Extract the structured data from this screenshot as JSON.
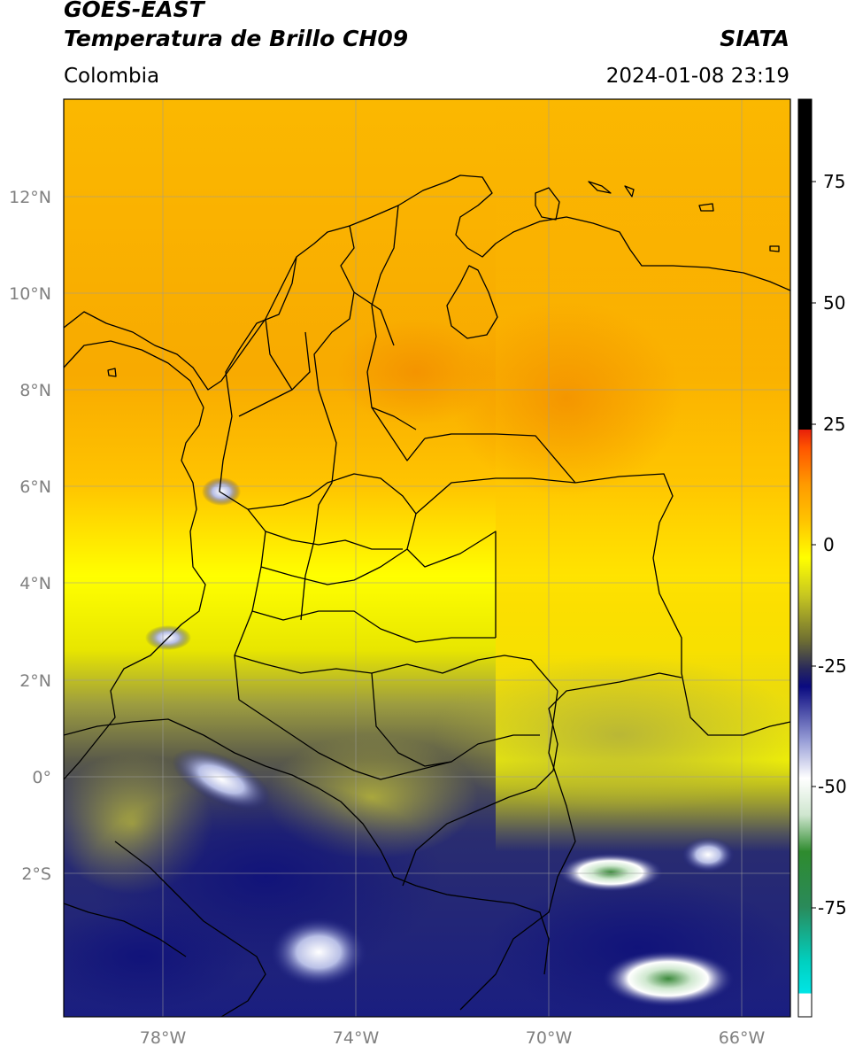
{
  "header": {
    "satellite": "GOES-EAST",
    "product": "Temperatura de Brillo CH09",
    "agency": "SIATA",
    "region": "Colombia",
    "timestamp": "2024-01-08 23:19"
  },
  "axes": {
    "lon_ticks": [
      "78°W",
      "74°W",
      "70°W",
      "66°W"
    ],
    "lat_ticks": [
      "12°N",
      "10°N",
      "8°N",
      "6°N",
      "4°N",
      "2°N",
      "0°",
      "2°S"
    ]
  },
  "colorbar": {
    "ticks": [
      "75",
      "50",
      "25",
      "0",
      "-25",
      "-50",
      "-75"
    ],
    "colors": {
      "black": "#000000",
      "red": "#e8200a",
      "orange": "#ff9a00",
      "yellow": "#ffff00",
      "olive": "#6e6e32",
      "navy": "#0a0a80",
      "white": "#ffffff",
      "green": "#2e8b2e",
      "cyan": "#00e5e5"
    }
  },
  "map_colors": {
    "warm_orange": "#f9a800",
    "yellow": "#ffee00",
    "olive": "#a0a23a",
    "navy": "#151a7c"
  }
}
